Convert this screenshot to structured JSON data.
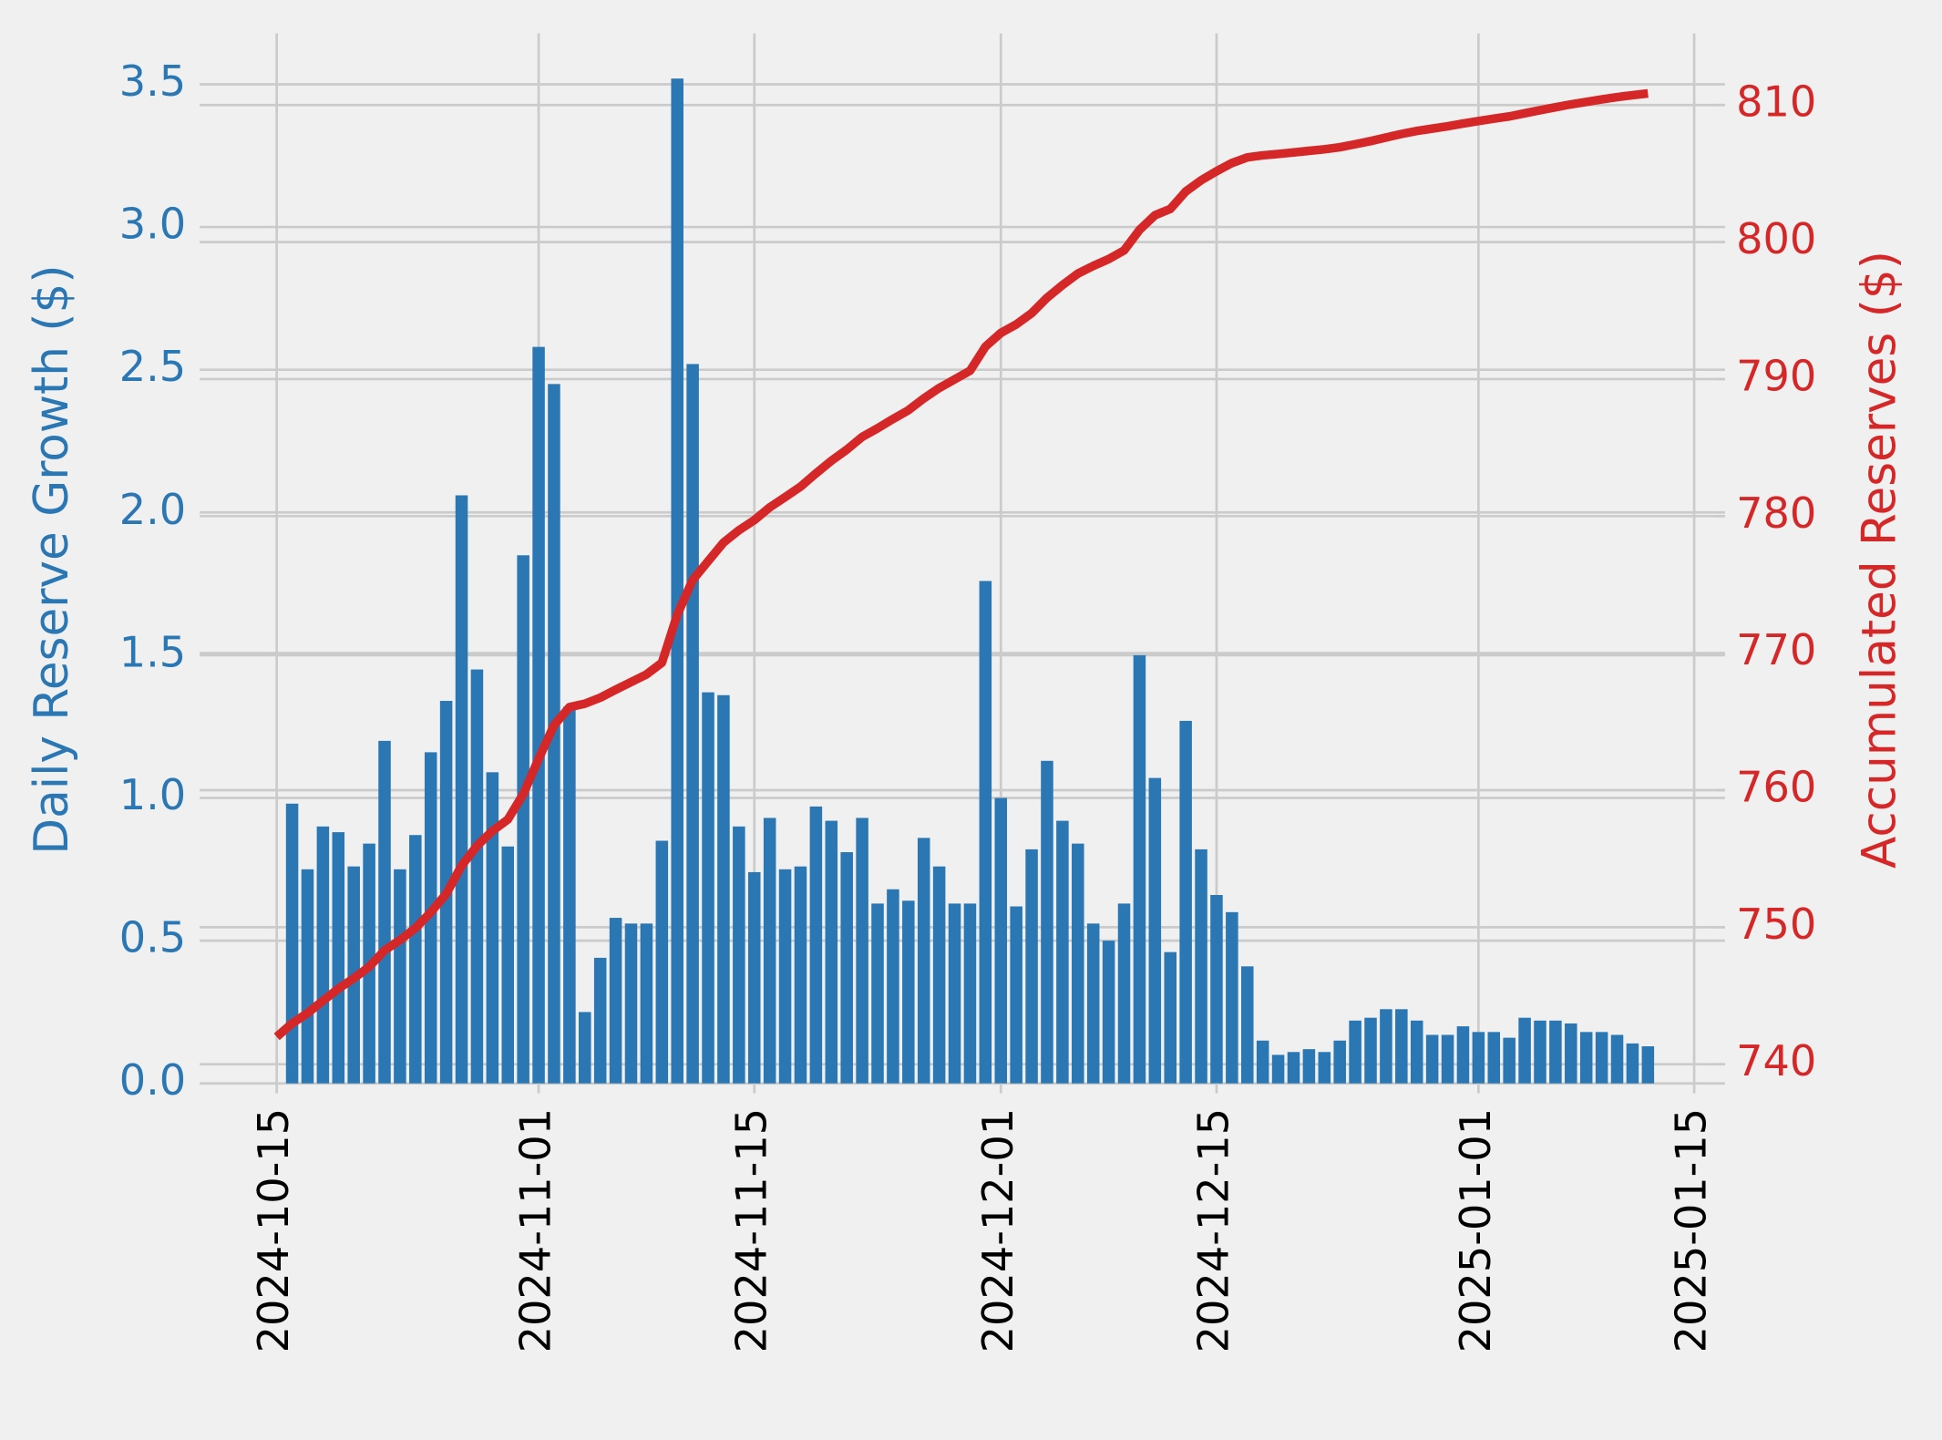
{
  "chart_data": {
    "type": "bar",
    "ylabel": "Daily Reserve Growth ($)",
    "y2label": "Accumulated Reserves ($)",
    "x": [
      "2024-10-15",
      "2024-10-16",
      "2024-10-17",
      "2024-10-18",
      "2024-10-19",
      "2024-10-20",
      "2024-10-21",
      "2024-10-22",
      "2024-10-23",
      "2024-10-24",
      "2024-10-25",
      "2024-10-26",
      "2024-10-27",
      "2024-10-28",
      "2024-10-29",
      "2024-10-30",
      "2024-10-31",
      "2024-11-01",
      "2024-11-02",
      "2024-11-03",
      "2024-11-04",
      "2024-11-05",
      "2024-11-06",
      "2024-11-07",
      "2024-11-08",
      "2024-11-09",
      "2024-11-10",
      "2024-11-11",
      "2024-11-12",
      "2024-11-13",
      "2024-11-14",
      "2024-11-15",
      "2024-11-16",
      "2024-11-17",
      "2024-11-18",
      "2024-11-19",
      "2024-11-20",
      "2024-11-21",
      "2024-11-22",
      "2024-11-23",
      "2024-11-24",
      "2024-11-25",
      "2024-11-26",
      "2024-11-27",
      "2024-11-28",
      "2024-11-29",
      "2024-11-30",
      "2024-12-01",
      "2024-12-02",
      "2024-12-03",
      "2024-12-04",
      "2024-12-05",
      "2024-12-06",
      "2024-12-07",
      "2024-12-08",
      "2024-12-09",
      "2024-12-10",
      "2024-12-11",
      "2024-12-12",
      "2024-12-13",
      "2024-12-14",
      "2024-12-15",
      "2024-12-16",
      "2024-12-17",
      "2024-12-18",
      "2024-12-19",
      "2024-12-20",
      "2024-12-21",
      "2024-12-22",
      "2024-12-23",
      "2024-12-24",
      "2024-12-25",
      "2024-12-26",
      "2024-12-27",
      "2024-12-28",
      "2024-12-29",
      "2024-12-30",
      "2024-12-31",
      "2025-01-01",
      "2025-01-02",
      "2025-01-03",
      "2025-01-04",
      "2025-01-05",
      "2025-01-06",
      "2025-01-07",
      "2025-01-08",
      "2025-01-09",
      "2025-01-10",
      "2025-01-11",
      "2025-01-12"
    ],
    "series": [
      {
        "type": "bar",
        "color": "#2a77b4",
        "values": [
          null,
          0.98,
          0.75,
          0.9,
          0.88,
          0.76,
          0.84,
          1.2,
          0.75,
          0.87,
          1.16,
          1.34,
          2.06,
          1.45,
          1.09,
          0.83,
          1.85,
          2.58,
          2.45,
          1.32,
          0.25,
          0.44,
          0.58,
          0.56,
          0.56,
          0.85,
          3.52,
          2.52,
          1.37,
          1.36,
          0.9,
          0.74,
          0.93,
          0.75,
          0.76,
          0.97,
          0.92,
          0.81,
          0.93,
          0.63,
          0.68,
          0.64,
          0.86,
          0.76,
          0.63,
          0.63,
          1.76,
          1.0,
          0.62,
          0.82,
          1.13,
          0.92,
          0.84,
          0.56,
          0.5,
          0.63,
          1.5,
          1.07,
          0.46,
          1.27,
          0.82,
          0.66,
          0.6,
          0.41,
          0.15,
          0.1,
          0.11,
          0.12,
          0.11,
          0.15,
          0.22,
          0.23,
          0.26,
          0.26,
          0.22,
          0.17,
          0.17,
          0.2,
          0.18,
          0.18,
          0.16,
          0.23,
          0.22,
          0.22,
          0.21,
          0.18,
          0.18,
          0.17,
          0.14,
          0.13
        ]
      },
      {
        "type": "line",
        "axis": "y2",
        "color": "#d62728",
        "values": [
          742.0,
          742.98,
          743.73,
          744.63,
          745.51,
          746.27,
          747.11,
          748.31,
          749.06,
          749.93,
          751.09,
          752.43,
          754.49,
          755.94,
          757.03,
          757.86,
          759.71,
          762.29,
          764.74,
          766.06,
          766.31,
          766.75,
          767.33,
          767.89,
          768.45,
          769.3,
          772.82,
          775.34,
          776.71,
          778.07,
          778.97,
          779.71,
          780.64,
          781.39,
          782.15,
          783.12,
          784.04,
          784.85,
          785.78,
          786.41,
          787.09,
          787.73,
          788.59,
          789.35,
          789.98,
          790.61,
          792.37,
          793.37,
          793.99,
          794.81,
          795.94,
          796.86,
          797.7,
          798.26,
          798.76,
          799.39,
          800.89,
          801.96,
          802.42,
          803.69,
          804.51,
          805.17,
          805.77,
          806.18,
          806.33,
          806.43,
          806.54,
          806.66,
          806.77,
          806.92,
          807.14,
          807.37,
          807.63,
          807.89,
          808.11,
          808.28,
          808.45,
          808.65,
          808.83,
          809.01,
          809.17,
          809.4,
          809.62,
          809.84,
          810.05,
          810.23,
          810.41,
          810.58,
          810.72,
          810.85
        ]
      }
    ],
    "xlim": [
      "2024-10-10",
      "2025-01-17"
    ],
    "xticks": [
      "2024-10-15",
      "2024-11-01",
      "2024-11-15",
      "2024-12-01",
      "2024-12-15",
      "2025-01-01",
      "2025-01-15"
    ],
    "ylim": [
      0,
      3.6
    ],
    "yticks": [
      {
        "value": 0,
        "label": "0.0"
      },
      0.5,
      {
        "value": 1,
        "label": "1.0"
      },
      1.5,
      {
        "value": 2,
        "label": "2.0"
      },
      2.5,
      {
        "value": 3,
        "label": "3.0"
      },
      3.5
    ],
    "y2lim": [
      738.6,
      813.6
    ],
    "y2ticks": [
      740,
      750,
      760,
      770,
      780,
      790,
      800,
      810
    ],
    "grid": true
  }
}
